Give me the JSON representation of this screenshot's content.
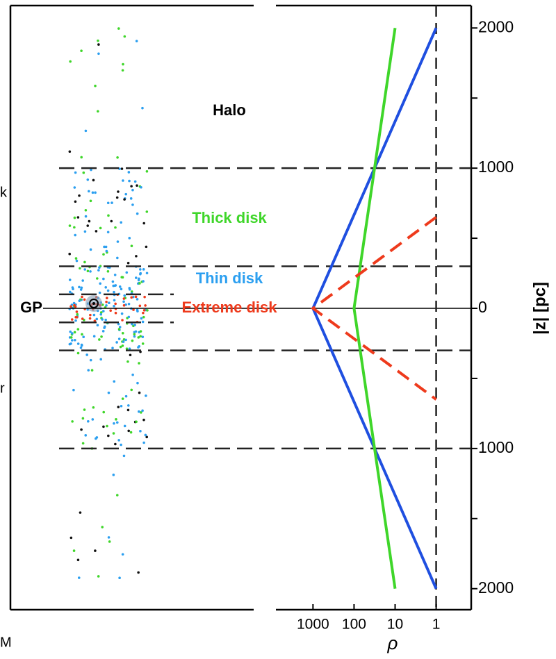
{
  "chart_data": {
    "type": "line",
    "x_label": "ρ",
    "y_label": "|z| [pc]",
    "xlog": true,
    "xlim": [
      8000,
      0.14
    ],
    "xticks": [
      1000,
      100,
      10,
      1
    ],
    "ylim": [
      -2150,
      2160
    ],
    "yticks": [
      2000,
      1000,
      0,
      {
        "value": -1000,
        "label": "1000"
      },
      {
        "value": -2000,
        "label": "2000"
      }
    ],
    "yminor": [
      1500,
      500,
      -500,
      -1500
    ],
    "series": [
      {
        "color": "#1f4fe0",
        "dashed": false,
        "x": [
          1,
          1000,
          1
        ],
        "values": [
          2000,
          0,
          -2000
        ]
      },
      {
        "color": "#3fd62a",
        "dashed": false,
        "x": [
          10,
          100,
          10
        ],
        "values": [
          2000,
          0,
          -2000
        ]
      },
      {
        "color": "#ee3a1c",
        "dashed": true,
        "x": [
          1,
          1000,
          1
        ],
        "values": [
          650,
          0,
          -650
        ]
      }
    ],
    "vlines": [
      1
    ],
    "hlines": [
      1000,
      300,
      -300,
      -1000
    ],
    "short_hlines": [
      100,
      -100
    ],
    "zero_line": 0,
    "annotations": [
      {
        "text": "Halo",
        "color": "#000000"
      },
      {
        "text": "Thick disk",
        "color": "#3fd62a"
      },
      {
        "text": "Thin disk",
        "color": "#2b9ff0"
      },
      {
        "text": "Extreme disk",
        "color": "#ee3a1c"
      },
      {
        "text": "GP",
        "color": "#000000"
      }
    ],
    "edge_text": [
      "k",
      "r",
      "M"
    ]
  }
}
